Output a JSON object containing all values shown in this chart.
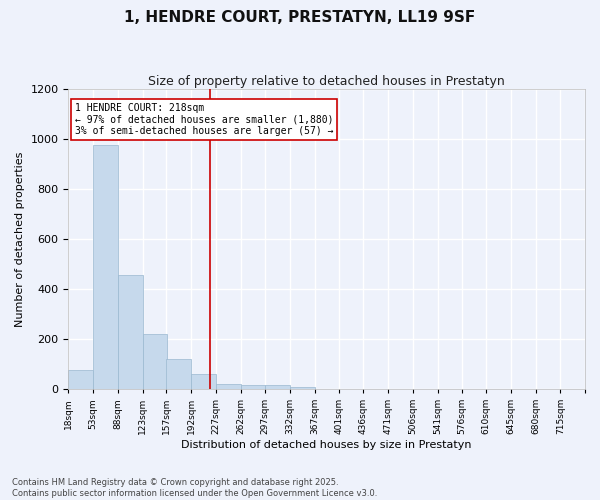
{
  "title": "1, HENDRE COURT, PRESTATYN, LL19 9SF",
  "subtitle": "Size of property relative to detached houses in Prestatyn",
  "xlabel": "Distribution of detached houses by size in Prestatyn",
  "ylabel": "Number of detached properties",
  "bar_edges": [
    18,
    53,
    88,
    123,
    157,
    192,
    227,
    262,
    297,
    332,
    367,
    401,
    436,
    471,
    506,
    541,
    576,
    610,
    645,
    680,
    715
  ],
  "bar_heights": [
    75,
    975,
    455,
    220,
    120,
    60,
    20,
    15,
    15,
    8,
    2,
    0,
    0,
    0,
    0,
    0,
    0,
    0,
    0,
    0
  ],
  "bar_color": "#c6d9ec",
  "bar_edge_color": "#9ab8d0",
  "bg_color": "#eef2fb",
  "grid_color": "#ffffff",
  "vline_x": 218,
  "vline_color": "#cc0000",
  "annotation_text": "1 HENDRE COURT: 218sqm\n← 97% of detached houses are smaller (1,880)\n3% of semi-detached houses are larger (57) →",
  "annotation_box_color": "#ffffff",
  "annotation_border_color": "#cc0000",
  "ylim": [
    0,
    1200
  ],
  "yticks": [
    0,
    200,
    400,
    600,
    800,
    1000,
    1200
  ],
  "tick_labels": [
    "18sqm",
    "53sqm",
    "88sqm",
    "123sqm",
    "157sqm",
    "192sqm",
    "227sqm",
    "262sqm",
    "297sqm",
    "332sqm",
    "367sqm",
    "401sqm",
    "436sqm",
    "471sqm",
    "506sqm",
    "541sqm",
    "576sqm",
    "610sqm",
    "645sqm",
    "680sqm",
    "715sqm"
  ],
  "footnote": "Contains HM Land Registry data © Crown copyright and database right 2025.\nContains public sector information licensed under the Open Government Licence v3.0.",
  "title_fontsize": 11,
  "subtitle_fontsize": 9,
  "label_fontsize": 8,
  "tick_fontsize": 6.5,
  "annot_fontsize": 7,
  "footnote_fontsize": 6
}
